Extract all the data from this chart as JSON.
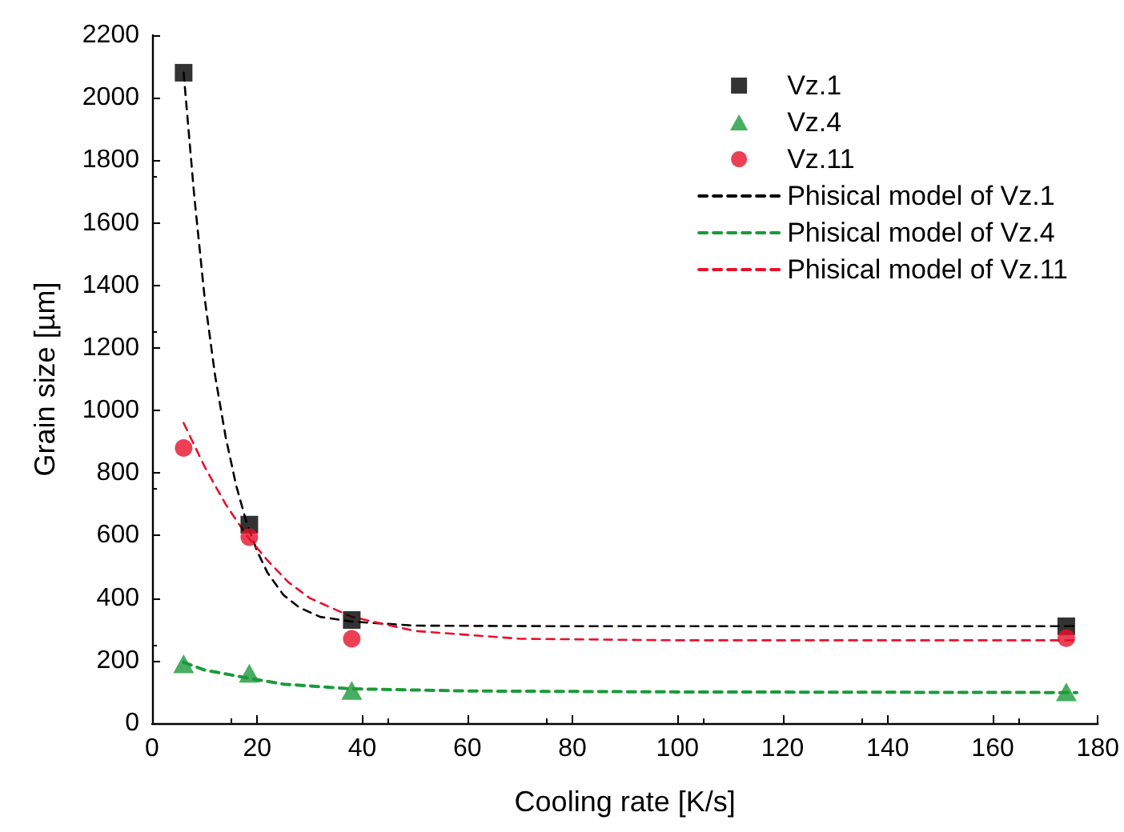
{
  "chart_data": {
    "type": "scatter",
    "xlabel": "Cooling rate [K/s]",
    "ylabel": "Grain size [µm]",
    "xlim": [
      0,
      180
    ],
    "xticks": [
      0,
      20,
      40,
      60,
      80,
      100,
      120,
      140,
      160,
      180
    ],
    "ylim": [
      0,
      2200
    ],
    "yticks": [
      0,
      200,
      400,
      600,
      800,
      1000,
      1200,
      1400,
      1600,
      1800,
      2000,
      2200
    ],
    "grid": false,
    "legend": "top right",
    "series": [
      {
        "name": "Vz.1",
        "marker": "square",
        "color": "#000000",
        "x": [
          6,
          18.5,
          38,
          174
        ],
        "values": [
          2080,
          635,
          330,
          310
        ]
      },
      {
        "name": "Vz.4",
        "marker": "triangle",
        "color": "#1a9a3a",
        "x": [
          6,
          18.5,
          38,
          174
        ],
        "values": [
          190,
          160,
          105,
          100
        ]
      },
      {
        "name": "Vz.11",
        "marker": "circle",
        "color": "#e8102a",
        "x": [
          6,
          18.5,
          38,
          174
        ],
        "values": [
          880,
          595,
          270,
          272
        ]
      },
      {
        "name": "Phisical model of Vz.1",
        "type": "line",
        "marker": "none",
        "line_style": "dashed",
        "color": "#000000",
        "x": [
          6,
          8,
          10,
          12,
          14,
          16,
          18,
          20,
          22,
          25,
          28,
          32,
          38,
          50,
          80,
          176
        ],
        "values": [
          2080,
          1690,
          1360,
          1110,
          915,
          760,
          640,
          550,
          480,
          410,
          370,
          340,
          325,
          312,
          310,
          310
        ]
      },
      {
        "name": "Phisical model of Vz.4",
        "type": "line",
        "marker": "none",
        "line_style": "dashed",
        "color": "#1a9a3a",
        "x": [
          6,
          10,
          18,
          25,
          38,
          60,
          100,
          176
        ],
        "values": [
          195,
          170,
          145,
          125,
          110,
          103,
          100,
          98
        ]
      },
      {
        "name": "Phisical model of Vz.11",
        "type": "line",
        "marker": "none",
        "line_style": "dashed",
        "color": "#e8102a",
        "x": [
          6,
          10,
          14,
          18,
          22,
          26,
          30,
          38,
          50,
          70,
          100,
          176
        ],
        "values": [
          960,
          820,
          700,
          600,
          520,
          450,
          400,
          340,
          295,
          270,
          265,
          265
        ]
      }
    ]
  }
}
